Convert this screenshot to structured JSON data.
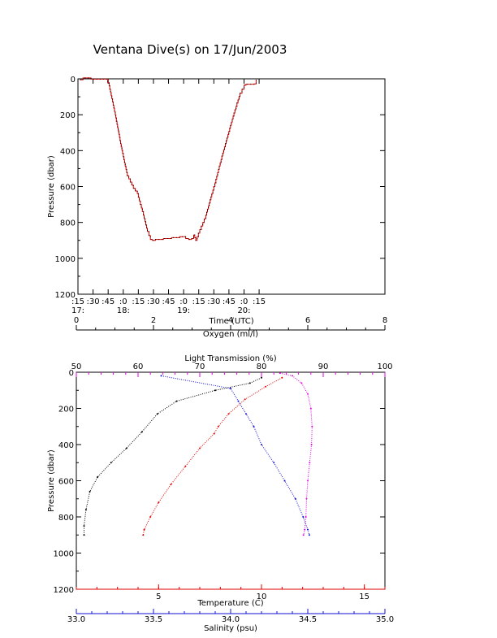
{
  "title": "Ventana Dive(s) on 17/Jun/2003",
  "colors": {
    "black": "#000000",
    "red": "#e00000",
    "blue": "#1010d0",
    "magenta": "#e000e0"
  },
  "chart_data": [
    {
      "type": "line",
      "xlabel": "Time (UTC)",
      "ylabel": "Pressure (dbar)",
      "xlim": [
        1035,
        1340
      ],
      "ylim": [
        1200,
        0
      ],
      "x_ticks": [
        {
          "value": 1035,
          "top": ":15",
          "bottom": "17:"
        },
        {
          "value": 1050,
          "top": ":30",
          "bottom": ""
        },
        {
          "value": 1065,
          "top": ":45",
          "bottom": ""
        },
        {
          "value": 1080,
          "top": ":0",
          "bottom": "18:"
        },
        {
          "value": 1095,
          "top": ":15",
          "bottom": ""
        },
        {
          "value": 1110,
          "top": ":30",
          "bottom": ""
        },
        {
          "value": 1125,
          "top": ":45",
          "bottom": ""
        },
        {
          "value": 1140,
          "top": ":0",
          "bottom": "19:"
        },
        {
          "value": 1155,
          "top": ":15",
          "bottom": ""
        },
        {
          "value": 1170,
          "top": ":30",
          "bottom": ""
        },
        {
          "value": 1185,
          "top": ":45",
          "bottom": ""
        },
        {
          "value": 1200,
          "top": ":0",
          "bottom": "20:"
        },
        {
          "value": 1215,
          "top": ":15",
          "bottom": ""
        }
      ],
      "y_ticks": [
        0,
        200,
        400,
        600,
        800,
        1000,
        1200
      ],
      "series": [
        {
          "color": "red",
          "x": [
            1037,
            1040,
            1048,
            1063,
            1066,
            1072,
            1078,
            1084,
            1090,
            1094,
            1097,
            1100,
            1104,
            1107,
            1109,
            1112,
            1120,
            1128,
            1136,
            1142,
            1145,
            1148,
            1150,
            1152,
            1156,
            1162,
            1168,
            1172,
            1178,
            1184,
            1190,
            1196,
            1200,
            1202,
            1205,
            1210,
            1212
          ],
          "y": [
            5,
            -5,
            2,
            2,
            40,
            200,
            380,
            540,
            610,
            640,
            700,
            760,
            850,
            895,
            900,
            895,
            890,
            885,
            880,
            890,
            895,
            890,
            870,
            900,
            840,
            760,
            640,
            560,
            430,
            310,
            190,
            80,
            35,
            30,
            30,
            28,
            5
          ]
        }
      ]
    },
    {
      "type": "scatter",
      "ylabel": "Pressure (dbar)",
      "ylim": [
        1200,
        0
      ],
      "y_ticks": [
        0,
        200,
        400,
        600,
        800,
        1000,
        1200
      ],
      "axes": [
        {
          "label": "Oxygen (ml/l)",
          "position": "top",
          "color": "black",
          "range": [
            0,
            8
          ],
          "ticks": [
            0,
            2,
            4,
            6,
            8
          ]
        },
        {
          "label": "Light Transmission (%)",
          "position": "top-inner",
          "color": "magenta",
          "range": [
            50,
            100
          ],
          "ticks": [
            50,
            60,
            70,
            80,
            90,
            100
          ]
        },
        {
          "label": "Temperature (C)",
          "position": "bottom",
          "color": "red",
          "range": [
            1,
            16
          ],
          "ticks": [
            5,
            10,
            15
          ]
        },
        {
          "label": "Salinity (psu)",
          "position": "bottom-outer",
          "color": "blue",
          "range": [
            33.0,
            35.0
          ],
          "ticks": [
            33.0,
            33.5,
            34.0,
            34.5,
            35.0
          ]
        }
      ],
      "series": [
        {
          "axis": "Oxygen (ml/l)",
          "color": "black",
          "x": [
            4.8,
            4.5,
            3.6,
            2.6,
            2.1,
            1.7,
            1.3,
            0.9,
            0.55,
            0.35,
            0.25,
            0.2,
            0.2
          ],
          "y": [
            30,
            60,
            100,
            160,
            230,
            330,
            420,
            500,
            580,
            660,
            760,
            850,
            900
          ]
        },
        {
          "axis": "Temperature (C)",
          "color": "red",
          "x": [
            11.0,
            10.2,
            9.2,
            8.4,
            7.9,
            7.7,
            7.0,
            6.3,
            5.6,
            5.0,
            4.6,
            4.3,
            4.25
          ],
          "y": [
            30,
            80,
            150,
            230,
            300,
            340,
            420,
            520,
            620,
            720,
            800,
            870,
            900
          ]
        },
        {
          "axis": "Salinity (psu)",
          "color": "blue",
          "x": [
            33.55,
            34.0,
            34.05,
            34.1,
            34.15,
            34.2,
            34.28,
            34.35,
            34.42,
            34.47,
            34.5,
            34.51
          ],
          "y": [
            20,
            90,
            160,
            230,
            300,
            400,
            500,
            600,
            700,
            800,
            870,
            900
          ]
        },
        {
          "axis": "Light Transmission (%)",
          "color": "magenta",
          "x": [
            83,
            85,
            86.5,
            87.5,
            88,
            88.2,
            88.1,
            87.8,
            87.5,
            87.3,
            87.2,
            87.0,
            86.8
          ],
          "y": [
            5,
            20,
            60,
            120,
            200,
            300,
            400,
            500,
            600,
            700,
            800,
            870,
            900
          ]
        }
      ]
    }
  ]
}
